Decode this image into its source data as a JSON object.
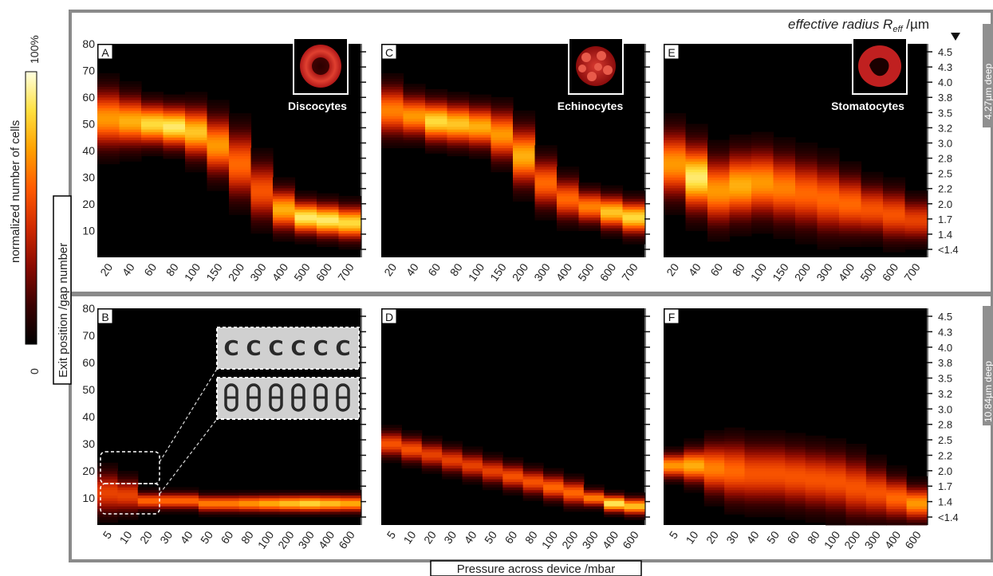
{
  "figure": {
    "colorbar": {
      "label": "normalized number of cells",
      "min_label": "0",
      "max_label": "100%",
      "colors": [
        "#000000",
        "#3a0000",
        "#8a0a00",
        "#d02a00",
        "#ff5a00",
        "#ffa000",
        "#ffe040",
        "#ffffe0"
      ]
    },
    "y_axis_label": "Exit position /gap number",
    "x_axis_label": "Pressure across device /mbar",
    "radius_label": "effective radius R",
    "radius_sub": "eff",
    "radius_unit": " /µm",
    "right_ticks": [
      "4.5",
      "4.3",
      "4.0",
      "3.8",
      "3.5",
      "3.2",
      "3.0",
      "2.8",
      "2.5",
      "2.2",
      "2.0",
      "1.7",
      "1.4",
      "<1.4"
    ],
    "row_labels": [
      "4.27µm deep",
      "10.84µm deep"
    ],
    "cell_labels": [
      "Discocytes",
      "Echinocytes",
      "Stomatocytes"
    ],
    "y_ticks": [
      "80",
      "70",
      "60",
      "50",
      "40",
      "30",
      "20",
      "10"
    ],
    "x_ticks_top": [
      "20",
      "40",
      "60",
      "80",
      "100",
      "150",
      "200",
      "300",
      "400",
      "500",
      "600",
      "700"
    ],
    "x_ticks_bottom": [
      "5",
      "10",
      "20",
      "30",
      "40",
      "50",
      "60",
      "80",
      "100",
      "200",
      "300",
      "400",
      "600"
    ]
  },
  "chart_data": [
    {
      "type": "heatmap",
      "panel": "A",
      "cell_type": "Discocytes",
      "row": "4.27µm deep",
      "x": [
        "20",
        "40",
        "60",
        "80",
        "100",
        "150",
        "200",
        "300",
        "400",
        "500",
        "600",
        "700"
      ],
      "ylim": [
        0,
        80
      ],
      "peak_position": [
        52,
        51,
        50,
        49,
        47,
        42,
        35,
        25,
        18,
        15,
        14,
        13
      ],
      "spread": [
        7,
        6,
        5,
        5,
        6,
        7,
        8,
        7,
        5,
        4,
        4,
        4
      ],
      "peak_intensity": [
        0.7,
        0.75,
        0.85,
        0.9,
        0.8,
        0.7,
        0.6,
        0.55,
        0.75,
        0.9,
        0.9,
        0.85
      ]
    },
    {
      "type": "heatmap",
      "panel": "B",
      "cell_type": "Discocytes",
      "row": "10.84µm deep",
      "x": [
        "5",
        "10",
        "20",
        "30",
        "40",
        "50",
        "60",
        "80",
        "100",
        "200",
        "300",
        "400",
        "600"
      ],
      "ylim": [
        0,
        80
      ],
      "peak_position": [
        12,
        11,
        9,
        9,
        9,
        8,
        8,
        8,
        8,
        8,
        8,
        8,
        8
      ],
      "spread": [
        5,
        4,
        2,
        2,
        2,
        2,
        2,
        2,
        2,
        2,
        2,
        2,
        2
      ],
      "peak_intensity": [
        0.5,
        0.5,
        0.6,
        0.6,
        0.6,
        0.65,
        0.65,
        0.7,
        0.75,
        0.8,
        0.85,
        0.8,
        0.75
      ]
    },
    {
      "type": "heatmap",
      "panel": "C",
      "cell_type": "Echinocytes",
      "row": "4.27µm deep",
      "x": [
        "20",
        "40",
        "60",
        "80",
        "100",
        "150",
        "200",
        "300",
        "400",
        "500",
        "600",
        "700"
      ],
      "ylim": [
        0,
        80
      ],
      "peak_position": [
        55,
        53,
        51,
        50,
        49,
        46,
        38,
        28,
        22,
        19,
        17,
        15
      ],
      "spread": [
        6,
        5,
        5,
        5,
        5,
        6,
        7,
        6,
        5,
        4,
        4,
        4
      ],
      "peak_intensity": [
        0.65,
        0.7,
        0.85,
        0.8,
        0.75,
        0.7,
        0.75,
        0.6,
        0.6,
        0.65,
        0.8,
        0.85
      ]
    },
    {
      "type": "heatmap",
      "panel": "D",
      "cell_type": "Echinocytes",
      "row": "10.84µm deep",
      "x": [
        "5",
        "10",
        "20",
        "30",
        "40",
        "50",
        "60",
        "80",
        "100",
        "200",
        "300",
        "400",
        "600"
      ],
      "ylim": [
        0,
        80
      ],
      "peak_position": [
        30,
        28,
        26,
        24,
        22,
        20,
        18,
        16,
        14,
        12,
        10,
        8,
        7
      ],
      "spread": [
        3,
        3,
        3,
        3,
        3,
        3,
        3,
        3,
        3,
        3,
        2,
        2,
        2
      ],
      "peak_intensity": [
        0.55,
        0.55,
        0.5,
        0.5,
        0.5,
        0.5,
        0.55,
        0.55,
        0.6,
        0.6,
        0.65,
        0.9,
        0.8
      ]
    },
    {
      "type": "heatmap",
      "panel": "E",
      "cell_type": "Stomatocytes",
      "row": "4.27µm deep",
      "x": [
        "20",
        "40",
        "60",
        "80",
        "100",
        "150",
        "200",
        "300",
        "400",
        "500",
        "600",
        "700"
      ],
      "ylim": [
        0,
        80
      ],
      "peak_position": [
        35,
        30,
        25,
        27,
        28,
        26,
        24,
        22,
        20,
        18,
        16,
        14
      ],
      "spread": [
        8,
        8,
        8,
        8,
        8,
        8,
        8,
        8,
        7,
        6,
        6,
        5
      ],
      "peak_intensity": [
        0.7,
        0.9,
        0.7,
        0.75,
        0.7,
        0.65,
        0.6,
        0.6,
        0.6,
        0.55,
        0.55,
        0.5
      ]
    },
    {
      "type": "heatmap",
      "panel": "F",
      "cell_type": "Stomatocytes",
      "row": "10.84µm deep",
      "x": [
        "5",
        "10",
        "20",
        "30",
        "40",
        "50",
        "60",
        "80",
        "100",
        "200",
        "300",
        "400",
        "600"
      ],
      "ylim": [
        0,
        80
      ],
      "peak_position": [
        22,
        22,
        21,
        20,
        19,
        19,
        18,
        17,
        16,
        14,
        12,
        10,
        8
      ],
      "spread": [
        3,
        4,
        6,
        7,
        7,
        7,
        7,
        7,
        7,
        7,
        6,
        5,
        4
      ],
      "peak_intensity": [
        0.7,
        0.75,
        0.65,
        0.6,
        0.55,
        0.55,
        0.55,
        0.55,
        0.55,
        0.55,
        0.55,
        0.6,
        0.7
      ]
    }
  ]
}
